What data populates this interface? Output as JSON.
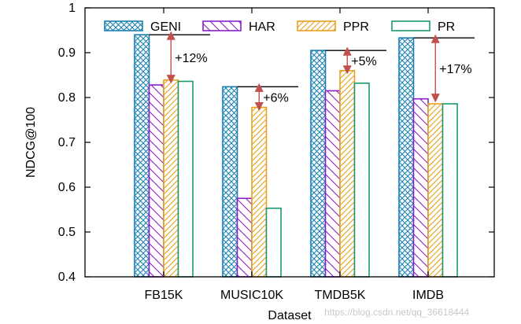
{
  "chart_data": {
    "type": "bar",
    "categories": [
      "FB15K",
      "MUSIC10K",
      "TMDB5K",
      "IMDB"
    ],
    "series": [
      {
        "name": "GENI",
        "values": [
          0.94,
          0.824,
          0.905,
          0.933
        ],
        "color": "#1a7fb0",
        "pattern": "crosshatch"
      },
      {
        "name": "HAR",
        "values": [
          0.828,
          0.575,
          0.815,
          0.797
        ],
        "color": "#8b1fc9",
        "pattern": "backslash"
      },
      {
        "name": "PPR",
        "values": [
          0.839,
          0.778,
          0.86,
          0.786
        ],
        "color": "#e8a020",
        "pattern": "slash"
      },
      {
        "name": "PR",
        "values": [
          0.836,
          0.553,
          0.832,
          0.786
        ],
        "color": "#1a9970",
        "pattern": "empty"
      }
    ],
    "annotations": [
      {
        "category": "FB15K",
        "text": "+12%",
        "from": 0.839,
        "to": 0.94
      },
      {
        "category": "MUSIC10K",
        "text": "+6%",
        "from": 0.778,
        "to": 0.824
      },
      {
        "category": "TMDB5K",
        "text": "+5%",
        "from": 0.86,
        "to": 0.905
      },
      {
        "category": "IMDB",
        "text": "+17%",
        "from": 0.797,
        "to": 0.933
      }
    ],
    "annotation_color": "#c0504d",
    "xlabel": "Dataset",
    "ylabel": "NDCG@100",
    "ylim": [
      0.4,
      1.0
    ],
    "yticks": [
      "0.4",
      "0.5",
      "0.6",
      "0.7",
      "0.8",
      "0.9",
      "1"
    ],
    "legend_position": "top",
    "grid": false
  },
  "watermark": "https://blog.csdn.net/qq_36618444"
}
